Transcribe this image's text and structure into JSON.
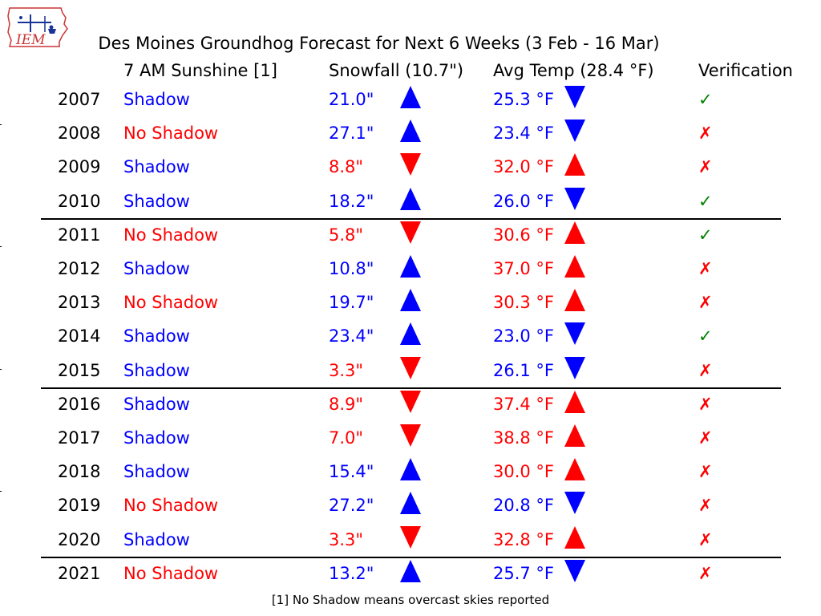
{
  "logo": {
    "text": "IEM"
  },
  "chart_data": {
    "type": "table",
    "title": "Des Moines Groundhog Forecast for Next 6 Weeks (3 Feb - 16 Mar)",
    "headers": {
      "sunshine": "7 AM Sunshine [1]",
      "snowfall": "Snowfall (10.7\")",
      "temp": "Avg Temp (28.4 °F)",
      "verification": "Verification"
    },
    "footnote": "[1] No Shadow means overcast skies reported",
    "colors": {
      "shadow": "#0000ff",
      "no_shadow": "#ff0000",
      "above": "#0000ff",
      "below": "#ff0000",
      "correct": "#008000",
      "wrong": "#ff0000"
    },
    "rows": [
      {
        "year": "2007",
        "sunshine": "Shadow",
        "snowfall": "21.0\"",
        "snow_dir": "up",
        "temp": "25.3 °F",
        "temp_dir": "down",
        "verification": "✓"
      },
      {
        "year": "2008",
        "sunshine": "No Shadow",
        "snowfall": "27.1\"",
        "snow_dir": "up",
        "temp": "23.4 °F",
        "temp_dir": "down",
        "verification": "✗"
      },
      {
        "year": "2009",
        "sunshine": "Shadow",
        "snowfall": "8.8\"",
        "snow_dir": "down",
        "temp": "32.0 °F",
        "temp_dir": "up",
        "verification": "✗"
      },
      {
        "year": "2010",
        "sunshine": "Shadow",
        "snowfall": "18.2\"",
        "snow_dir": "up",
        "temp": "26.0 °F",
        "temp_dir": "down",
        "verification": "✓"
      },
      {
        "year": "2011",
        "sunshine": "No Shadow",
        "snowfall": "5.8\"",
        "snow_dir": "down",
        "temp": "30.6 °F",
        "temp_dir": "up",
        "verification": "✓"
      },
      {
        "year": "2012",
        "sunshine": "Shadow",
        "snowfall": "10.8\"",
        "snow_dir": "up",
        "temp": "37.0 °F",
        "temp_dir": "up",
        "verification": "✗"
      },
      {
        "year": "2013",
        "sunshine": "No Shadow",
        "snowfall": "19.7\"",
        "snow_dir": "up",
        "temp": "30.3 °F",
        "temp_dir": "up",
        "verification": "✗"
      },
      {
        "year": "2014",
        "sunshine": "Shadow",
        "snowfall": "23.4\"",
        "snow_dir": "up",
        "temp": "23.0 °F",
        "temp_dir": "down",
        "verification": "✓"
      },
      {
        "year": "2015",
        "sunshine": "Shadow",
        "snowfall": "3.3\"",
        "snow_dir": "down",
        "temp": "26.1 °F",
        "temp_dir": "down",
        "verification": "✗"
      },
      {
        "year": "2016",
        "sunshine": "Shadow",
        "snowfall": "8.9\"",
        "snow_dir": "down",
        "temp": "37.4 °F",
        "temp_dir": "up",
        "verification": "✗"
      },
      {
        "year": "2017",
        "sunshine": "Shadow",
        "snowfall": "7.0\"",
        "snow_dir": "down",
        "temp": "38.8 °F",
        "temp_dir": "up",
        "verification": "✗"
      },
      {
        "year": "2018",
        "sunshine": "Shadow",
        "snowfall": "15.4\"",
        "snow_dir": "up",
        "temp": "30.0 °F",
        "temp_dir": "up",
        "verification": "✗"
      },
      {
        "year": "2019",
        "sunshine": "No Shadow",
        "snowfall": "27.2\"",
        "snow_dir": "up",
        "temp": "20.8 °F",
        "temp_dir": "down",
        "verification": "✗"
      },
      {
        "year": "2020",
        "sunshine": "Shadow",
        "snowfall": "3.3\"",
        "snow_dir": "down",
        "temp": "32.8 °F",
        "temp_dir": "up",
        "verification": "✗"
      },
      {
        "year": "2021",
        "sunshine": "No Shadow",
        "snowfall": "13.2\"",
        "snow_dir": "up",
        "temp": "25.7 °F",
        "temp_dir": "down",
        "verification": "✗"
      }
    ],
    "separators_after": [
      "2010",
      "2015",
      "2020"
    ]
  }
}
